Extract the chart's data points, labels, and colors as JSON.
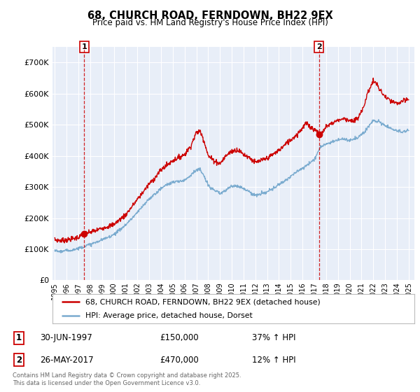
{
  "title": "68, CHURCH ROAD, FERNDOWN, BH22 9EX",
  "subtitle": "Price paid vs. HM Land Registry's House Price Index (HPI)",
  "red_label": "68, CHURCH ROAD, FERNDOWN, BH22 9EX (detached house)",
  "blue_label": "HPI: Average price, detached house, Dorset",
  "transaction1": {
    "label": "1",
    "date": "30-JUN-1997",
    "price": "£150,000",
    "hpi": "37% ↑ HPI"
  },
  "transaction2": {
    "label": "2",
    "date": "26-MAY-2017",
    "price": "£470,000",
    "hpi": "12% ↑ HPI"
  },
  "copyright": "Contains HM Land Registry data © Crown copyright and database right 2025.\nThis data is licensed under the Open Government Licence v3.0.",
  "ylim": [
    0,
    750000
  ],
  "yticks": [
    0,
    100000,
    200000,
    300000,
    400000,
    500000,
    600000,
    700000
  ],
  "ytick_labels": [
    "£0",
    "£100K",
    "£200K",
    "£300K",
    "£400K",
    "£500K",
    "£600K",
    "£700K"
  ],
  "red_color": "#cc0000",
  "blue_color": "#7aabcf",
  "dashed_color": "#cc0000",
  "marker_color": "#cc0000",
  "background_plot": "#e8eef8",
  "grid_color": "#ffffff",
  "transaction1_x": 1997.5,
  "transaction1_y": 150000,
  "transaction2_x": 2017.4,
  "transaction2_y": 470000,
  "xlim_left": 1994.8,
  "xlim_right": 2025.5
}
